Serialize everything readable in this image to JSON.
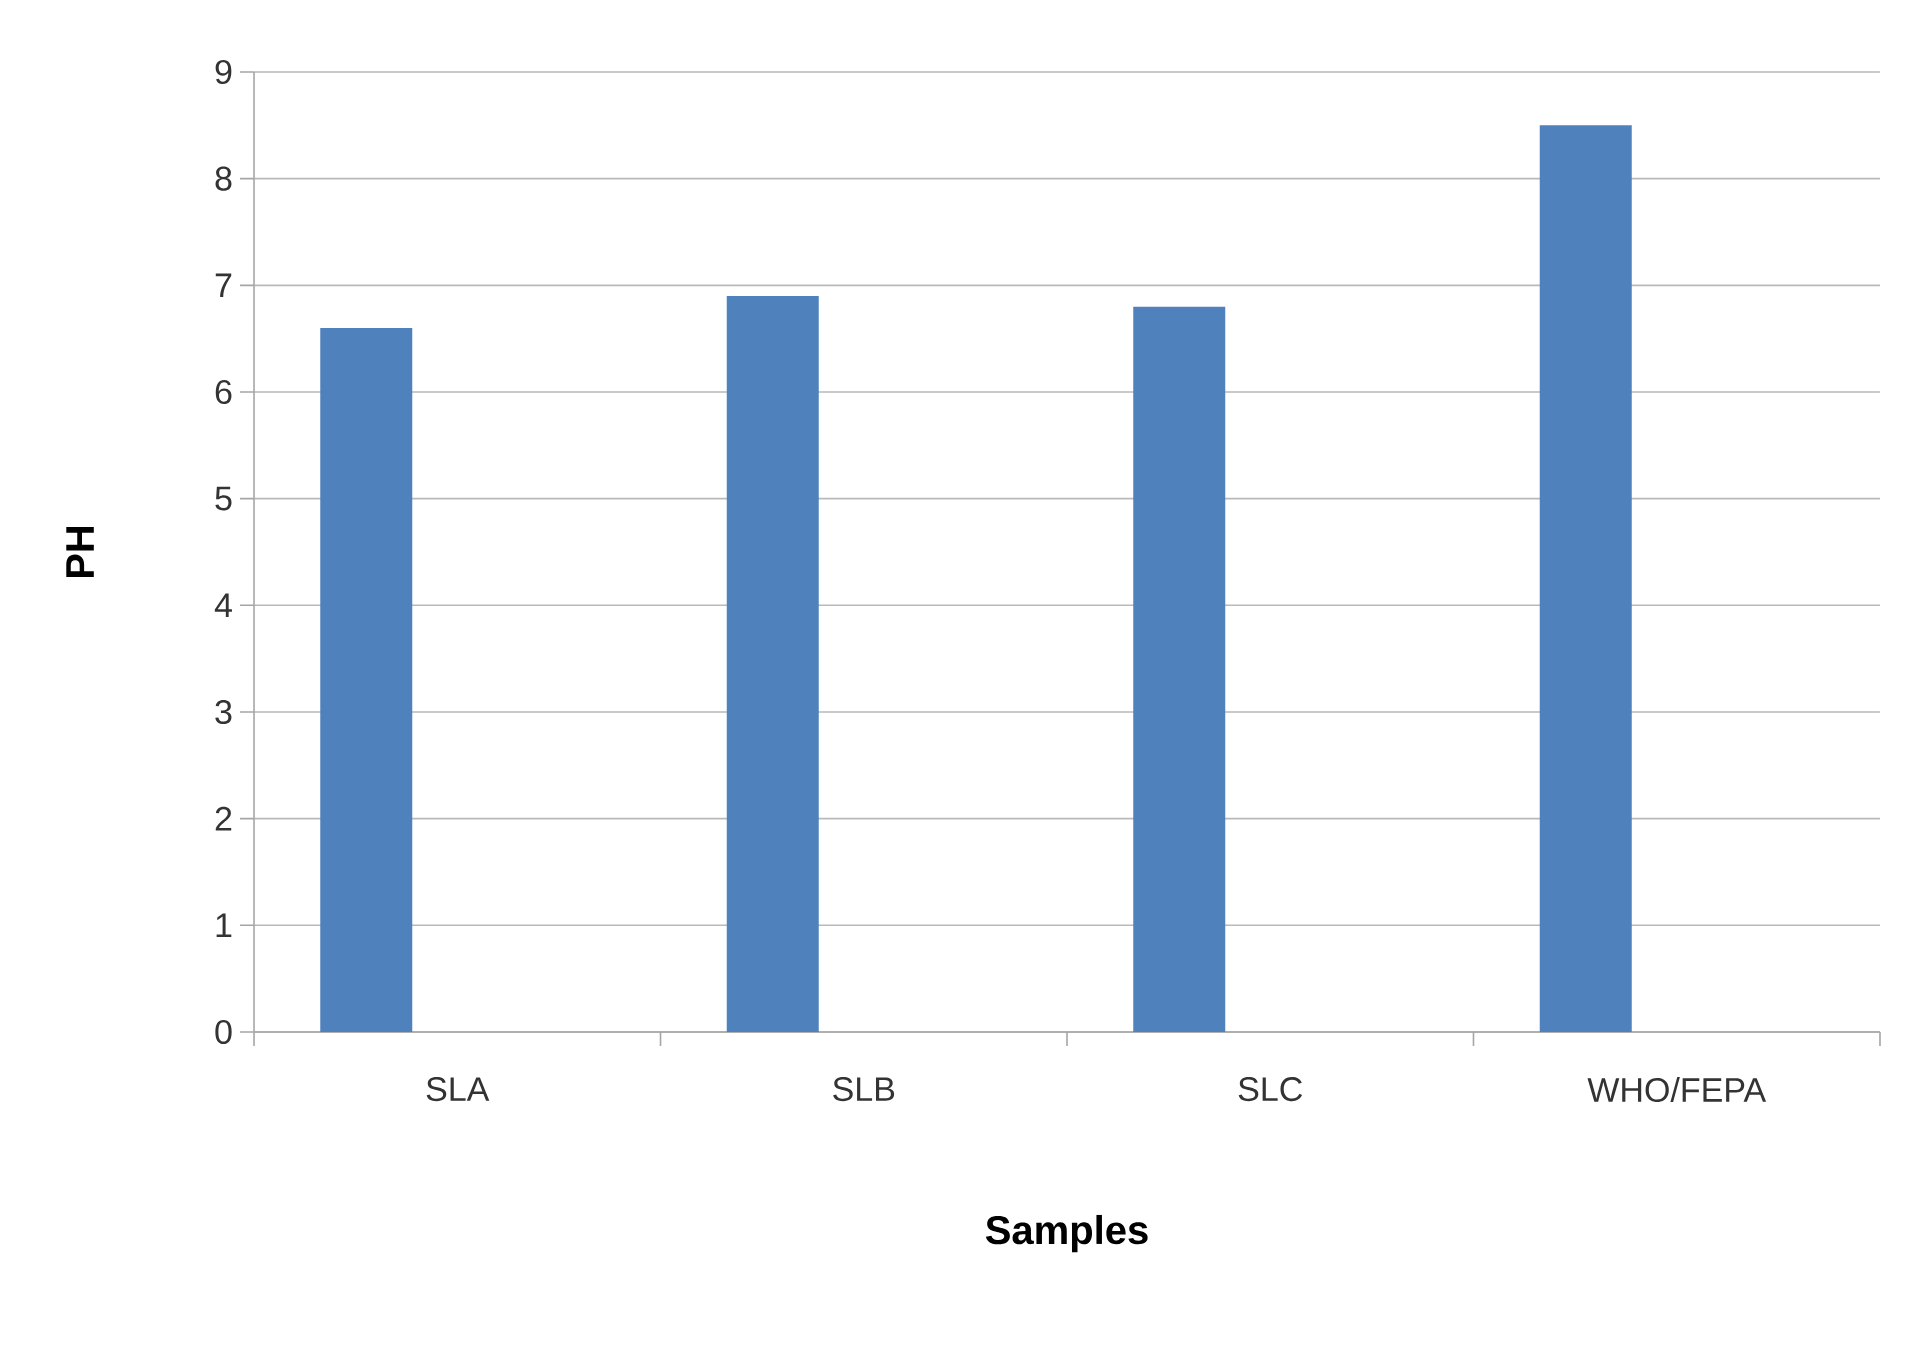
{
  "chart_data": {
    "type": "bar",
    "xlabel": "Samples",
    "ylabel": "PH",
    "categories": [
      "SLA",
      "SLB",
      "SLC",
      "WHO/FEPA"
    ],
    "values": [
      6.6,
      6.9,
      6.8,
      8.5
    ],
    "color": "#4f81bd",
    "ylim": [
      0,
      9
    ],
    "yticks": [
      0,
      1,
      2,
      3,
      4,
      5,
      6,
      7,
      8,
      9
    ],
    "grid": "y"
  }
}
